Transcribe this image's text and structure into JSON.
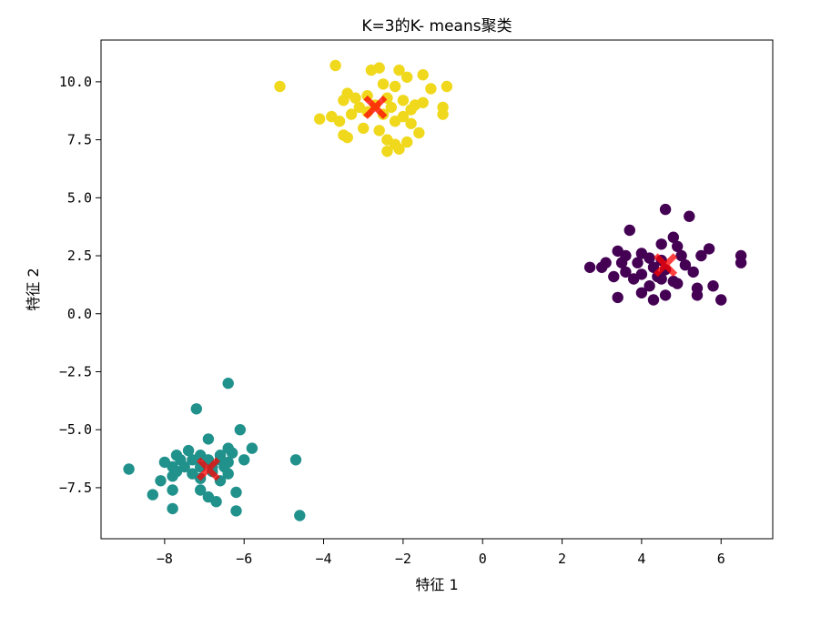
{
  "chart_data": {
    "type": "scatter",
    "title": "K=3的K- means聚类",
    "xlabel": "特征 1",
    "ylabel": "特征 2",
    "xlim": [
      -9.6,
      7.3
    ],
    "ylim": [
      -9.7,
      11.8
    ],
    "xticks": [
      -8,
      -6,
      -4,
      -2,
      0,
      2,
      4,
      6
    ],
    "yticks": [
      -7.5,
      -5.0,
      -2.5,
      0.0,
      2.5,
      5.0,
      7.5,
      10.0
    ],
    "x_tick_labels": [
      "−8",
      "−6",
      "−4",
      "−2",
      "0",
      "2",
      "4",
      "6"
    ],
    "y_tick_labels": [
      "−7.5",
      "−5.0",
      "−2.5",
      "0.0",
      "2.5",
      "5.0",
      "7.5",
      "10.0"
    ],
    "grid": false,
    "legend": "none",
    "series": [
      {
        "color": "#f0d81c",
        "points": [
          [
            -3.7,
            10.7
          ],
          [
            -2.8,
            10.5
          ],
          [
            -2.6,
            10.6
          ],
          [
            -2.1,
            10.5
          ],
          [
            -1.9,
            10.2
          ],
          [
            -1.5,
            10.3
          ],
          [
            -5.1,
            9.8
          ],
          [
            -2.5,
            9.9
          ],
          [
            -2.2,
            9.8
          ],
          [
            -1.3,
            9.7
          ],
          [
            -0.9,
            9.8
          ],
          [
            -3.4,
            9.5
          ],
          [
            -3.2,
            9.3
          ],
          [
            -2.9,
            9.4
          ],
          [
            -2.4,
            9.3
          ],
          [
            -2.0,
            9.2
          ],
          [
            -1.7,
            9.0
          ],
          [
            -3.5,
            9.2
          ],
          [
            -3.1,
            8.9
          ],
          [
            -2.7,
            9.0
          ],
          [
            -2.3,
            8.9
          ],
          [
            -1.8,
            8.8
          ],
          [
            -1.5,
            9.1
          ],
          [
            -1.0,
            8.9
          ],
          [
            -3.8,
            8.5
          ],
          [
            -3.3,
            8.6
          ],
          [
            -2.9,
            8.7
          ],
          [
            -2.5,
            8.6
          ],
          [
            -2.0,
            8.5
          ],
          [
            -1.0,
            8.6
          ],
          [
            -4.1,
            8.4
          ],
          [
            -3.6,
            8.3
          ],
          [
            -2.2,
            8.3
          ],
          [
            -1.8,
            8.2
          ],
          [
            -3.0,
            8.0
          ],
          [
            -2.6,
            7.9
          ],
          [
            -1.6,
            7.8
          ],
          [
            -3.5,
            7.7
          ],
          [
            -3.4,
            7.6
          ],
          [
            -2.4,
            7.5
          ],
          [
            -2.2,
            7.3
          ],
          [
            -2.1,
            7.1
          ],
          [
            -2.4,
            7.0
          ],
          [
            -1.9,
            7.4
          ]
        ]
      },
      {
        "color": "#440154",
        "points": [
          [
            4.6,
            4.5
          ],
          [
            5.2,
            4.2
          ],
          [
            3.7,
            3.6
          ],
          [
            4.8,
            3.3
          ],
          [
            4.5,
            3.0
          ],
          [
            4.9,
            2.9
          ],
          [
            5.7,
            2.8
          ],
          [
            3.4,
            2.7
          ],
          [
            3.6,
            2.5
          ],
          [
            4.0,
            2.6
          ],
          [
            4.2,
            2.4
          ],
          [
            4.5,
            2.3
          ],
          [
            5.0,
            2.5
          ],
          [
            5.5,
            2.5
          ],
          [
            6.5,
            2.5
          ],
          [
            3.1,
            2.2
          ],
          [
            3.5,
            2.2
          ],
          [
            3.9,
            2.2
          ],
          [
            4.3,
            2.0
          ],
          [
            4.6,
            1.9
          ],
          [
            5.1,
            2.1
          ],
          [
            6.5,
            2.2
          ],
          [
            2.7,
            2.0
          ],
          [
            3.0,
            2.0
          ],
          [
            3.6,
            1.8
          ],
          [
            4.0,
            1.7
          ],
          [
            4.4,
            1.6
          ],
          [
            5.3,
            1.8
          ],
          [
            3.3,
            1.6
          ],
          [
            3.8,
            1.5
          ],
          [
            4.5,
            1.5
          ],
          [
            4.8,
            1.4
          ],
          [
            4.2,
            1.2
          ],
          [
            5.4,
            1.1
          ],
          [
            5.8,
            1.2
          ],
          [
            4.0,
            0.9
          ],
          [
            4.6,
            0.8
          ],
          [
            5.4,
            0.8
          ],
          [
            3.4,
            0.7
          ],
          [
            4.3,
            0.6
          ],
          [
            6.0,
            0.6
          ],
          [
            4.9,
            1.3
          ]
        ]
      },
      {
        "color": "#21918c",
        "points": [
          [
            -6.4,
            -3.0
          ],
          [
            -7.2,
            -4.1
          ],
          [
            -6.1,
            -5.0
          ],
          [
            -6.9,
            -5.4
          ],
          [
            -6.4,
            -5.8
          ],
          [
            -5.8,
            -5.8
          ],
          [
            -7.4,
            -5.9
          ],
          [
            -7.1,
            -6.1
          ],
          [
            -6.6,
            -6.1
          ],
          [
            -6.3,
            -6.0
          ],
          [
            -7.7,
            -6.1
          ],
          [
            -7.6,
            -6.3
          ],
          [
            -7.3,
            -6.3
          ],
          [
            -6.9,
            -6.3
          ],
          [
            -6.6,
            -6.3
          ],
          [
            -6.4,
            -6.4
          ],
          [
            -6.0,
            -6.3
          ],
          [
            -4.7,
            -6.3
          ],
          [
            -8.0,
            -6.4
          ],
          [
            -7.8,
            -6.6
          ],
          [
            -7.5,
            -6.6
          ],
          [
            -7.1,
            -6.6
          ],
          [
            -6.8,
            -6.6
          ],
          [
            -6.5,
            -6.6
          ],
          [
            -8.9,
            -6.7
          ],
          [
            -7.7,
            -6.8
          ],
          [
            -7.3,
            -6.9
          ],
          [
            -6.8,
            -6.8
          ],
          [
            -6.4,
            -6.9
          ],
          [
            -7.8,
            -7.0
          ],
          [
            -7.1,
            -7.1
          ],
          [
            -8.1,
            -7.2
          ],
          [
            -7.1,
            -7.6
          ],
          [
            -6.2,
            -7.7
          ],
          [
            -7.8,
            -7.6
          ],
          [
            -8.3,
            -7.8
          ],
          [
            -6.9,
            -7.9
          ],
          [
            -6.7,
            -8.1
          ],
          [
            -7.8,
            -8.4
          ],
          [
            -6.2,
            -8.5
          ],
          [
            -4.6,
            -8.7
          ],
          [
            -6.6,
            -7.2
          ]
        ]
      }
    ],
    "centroids": {
      "color": "#ff0000",
      "marker": "X",
      "points": [
        [
          -2.7,
          8.9
        ],
        [
          4.6,
          2.1
        ],
        [
          -6.9,
          -6.7
        ]
      ]
    }
  }
}
